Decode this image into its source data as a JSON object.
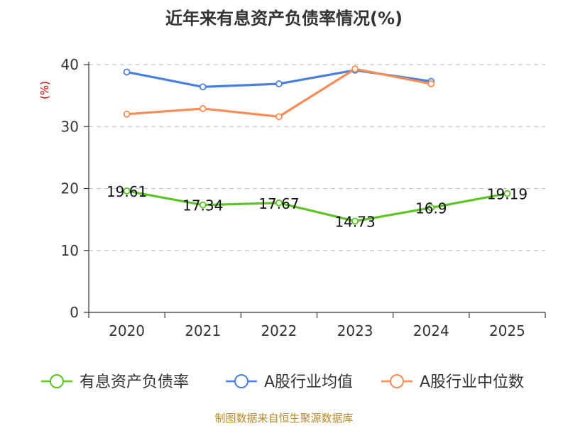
{
  "chart_data": {
    "type": "line",
    "title": "近年来有息资产负债率情况(%)",
    "ylabel": "(%)",
    "xlabel": "",
    "categories": [
      "2020",
      "2021",
      "2022",
      "2023",
      "2024",
      "2025"
    ],
    "ylim": [
      0,
      40
    ],
    "yticks": [
      0,
      10,
      20,
      30,
      40
    ],
    "grid": true,
    "legend_position": "bottom",
    "series": [
      {
        "name": "有息资产负债率",
        "color": "#5cc424",
        "values": [
          19.61,
          17.34,
          17.67,
          14.73,
          16.9,
          19.19
        ],
        "labels": [
          "19.61",
          "17.34",
          "17.67",
          "14.73",
          "16.9",
          "19.19"
        ]
      },
      {
        "name": "A股行业均值",
        "color": "#4a7fdc",
        "values": [
          38.8,
          36.4,
          36.9,
          39.1,
          37.3,
          null
        ]
      },
      {
        "name": "A股行业中位数",
        "color": "#f58d55",
        "values": [
          32.0,
          32.9,
          31.6,
          39.3,
          36.9,
          null
        ]
      }
    ]
  },
  "source": "制图数据来自恒生聚源数据库"
}
